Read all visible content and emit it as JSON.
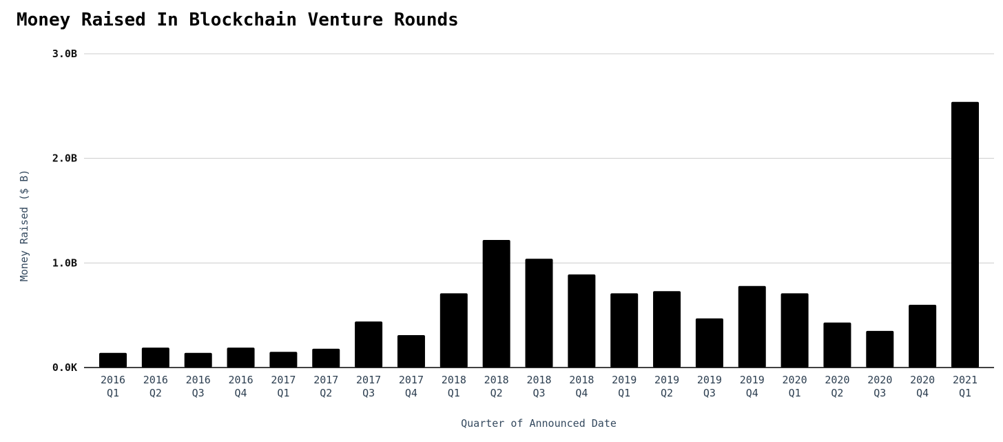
{
  "chart_data": {
    "type": "bar",
    "title": "Money Raised In Blockchain Venture Rounds",
    "xlabel": "Quarter of Announced Date",
    "ylabel": "Money Raised ($ B)",
    "ylim": [
      0,
      3.0
    ],
    "yticks": [
      {
        "value": 0,
        "label": "0.0K"
      },
      {
        "value": 1.0,
        "label": "1.0B"
      },
      {
        "value": 2.0,
        "label": "2.0B"
      },
      {
        "value": 3.0,
        "label": "3.0B"
      }
    ],
    "grid": true,
    "bar_color": "#000000",
    "categories": [
      {
        "year": "2016",
        "quarter": "Q1"
      },
      {
        "year": "2016",
        "quarter": "Q2"
      },
      {
        "year": "2016",
        "quarter": "Q3"
      },
      {
        "year": "2016",
        "quarter": "Q4"
      },
      {
        "year": "2017",
        "quarter": "Q1"
      },
      {
        "year": "2017",
        "quarter": "Q2"
      },
      {
        "year": "2017",
        "quarter": "Q3"
      },
      {
        "year": "2017",
        "quarter": "Q4"
      },
      {
        "year": "2018",
        "quarter": "Q1"
      },
      {
        "year": "2018",
        "quarter": "Q2"
      },
      {
        "year": "2018",
        "quarter": "Q3"
      },
      {
        "year": "2018",
        "quarter": "Q4"
      },
      {
        "year": "2019",
        "quarter": "Q1"
      },
      {
        "year": "2019",
        "quarter": "Q2"
      },
      {
        "year": "2019",
        "quarter": "Q3"
      },
      {
        "year": "2019",
        "quarter": "Q4"
      },
      {
        "year": "2020",
        "quarter": "Q1"
      },
      {
        "year": "2020",
        "quarter": "Q2"
      },
      {
        "year": "2020",
        "quarter": "Q3"
      },
      {
        "year": "2020",
        "quarter": "Q4"
      },
      {
        "year": "2021",
        "quarter": "Q1"
      }
    ],
    "values": [
      0.14,
      0.19,
      0.14,
      0.19,
      0.15,
      0.18,
      0.44,
      0.31,
      0.71,
      1.22,
      1.04,
      0.89,
      0.71,
      0.73,
      0.47,
      0.78,
      0.71,
      0.43,
      0.35,
      0.6,
      2.54
    ]
  }
}
